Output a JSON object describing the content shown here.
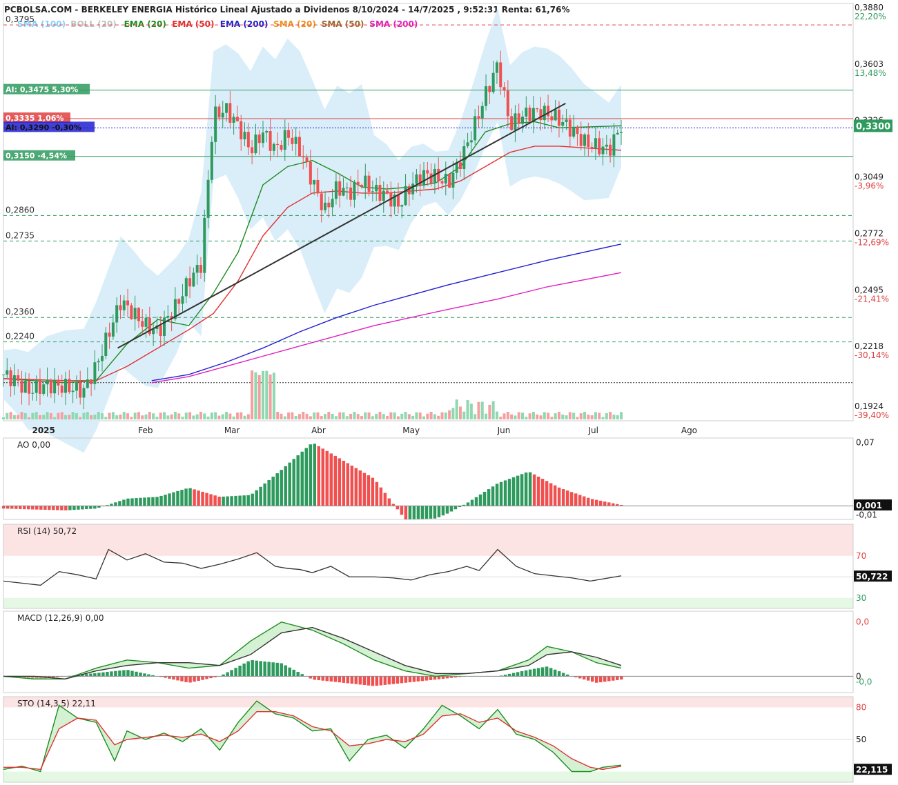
{
  "header": {
    "title": "PCBOLSA.COM - BERKELEY ENERGIA Histórico Lineal Ajustado a Dividenos 8/10/2024 - 14/7/2025 , 9:52:31 Renta: 61,76%"
  },
  "legend": [
    {
      "name": "SMA",
      "param": "(100)",
      "color": "#87cefa"
    },
    {
      "name": "BOLL",
      "param": "(20)",
      "color": "#c0c0c0"
    },
    {
      "name": "EMA",
      "param": "(20)",
      "color": "#1e8c1e"
    },
    {
      "name": "EMA",
      "param": "(50)",
      "color": "#e03030"
    },
    {
      "name": "EMA",
      "param": "(200)",
      "color": "#2020d0"
    },
    {
      "name": "SMA",
      "param": "(20)",
      "color": "#f0901e"
    },
    {
      "name": "SMA",
      "param": "(50)",
      "color": "#a0642d"
    },
    {
      "name": "SMA",
      "param": "(200)",
      "color": "#e020c0"
    }
  ],
  "colors": {
    "up": "#2e9a5e",
    "down": "#f05050",
    "boll_fill": "#d6ecfa",
    "trendline": "#333333",
    "pct_pos": "#2e9a5e",
    "pct_neg": "#e04040"
  },
  "chart_data": [
    {
      "type": "candlestick",
      "panel": "price",
      "ylim": [
        0.186,
        0.389
      ],
      "x_labels": [
        "2025",
        "Feb",
        "Mar",
        "Abr",
        "May",
        "Jun",
        "Jul",
        "Ago"
      ],
      "y_ticks": [
        {
          "value": 0.388,
          "label": "0,3880",
          "pct": "22,20%"
        },
        {
          "value": 0.3603,
          "label": "0,3603",
          "pct": "13,48%"
        },
        {
          "value": 0.3326,
          "label": "0,3326",
          "pct": ""
        },
        {
          "value": 0.3049,
          "label": "0,3049",
          "pct": "-3,96%"
        },
        {
          "value": 0.2772,
          "label": "0,2772",
          "pct": "-12,69%"
        },
        {
          "value": 0.2495,
          "label": "0,2495",
          "pct": "-21,41%"
        },
        {
          "value": 0.2218,
          "label": "0,2218",
          "pct": "-30,14%"
        },
        {
          "value": 0.1924,
          "label": "0,1924",
          "pct": "-39,40%"
        }
      ],
      "last_price": {
        "value": 0.33,
        "label": "0,3300"
      },
      "horizontal_levels": [
        {
          "value": 0.3795,
          "label": "0,3795",
          "style": "dashed",
          "color": "#e04040"
        },
        {
          "value": 0.3475,
          "label": "AI: 0,3475  5,30%",
          "style": "solid",
          "color": "#2e9a5e"
        },
        {
          "value": 0.3335,
          "label": "0,3335  1,06%",
          "style": "solid",
          "color": "#e04040"
        },
        {
          "value": 0.329,
          "label": "AI: 0,3290  -0,30%",
          "style": "dotted",
          "color": "#2020d0"
        },
        {
          "value": 0.315,
          "label": "0,3150  -4,54%",
          "style": "solid",
          "color": "#2e9a5e"
        },
        {
          "value": 0.286,
          "label": "0,2860",
          "style": "dashed",
          "color": "#2e9a5e"
        },
        {
          "value": 0.2735,
          "label": "0,2735",
          "style": "dashed",
          "color": "#2e9a5e"
        },
        {
          "value": 0.236,
          "label": "0,2360",
          "style": "dashed",
          "color": "#2e9a5e"
        },
        {
          "value": 0.224,
          "label": "0,2240",
          "style": "dashed",
          "color": "#2e9a5e"
        },
        {
          "value": 0.204,
          "label": "",
          "style": "dotted",
          "color": "#333333"
        }
      ],
      "trendline": {
        "x": [
          0.185,
          0.72
        ],
        "y": [
          0.221,
          0.341
        ]
      },
      "series": [
        {
          "name": "Close",
          "color": "#333333",
          "x": [
            0.0,
            0.02,
            0.04,
            0.07,
            0.1,
            0.13,
            0.15,
            0.17,
            0.19,
            0.21,
            0.23,
            0.25,
            0.28,
            0.3,
            0.32,
            0.34,
            0.36,
            0.38,
            0.4,
            0.42,
            0.44,
            0.45,
            0.46,
            0.48,
            0.5,
            0.52,
            0.54,
            0.56,
            0.58,
            0.6,
            0.62,
            0.64,
            0.66,
            0.68,
            0.7,
            0.72,
            0.74,
            0.76,
            0.78,
            0.8,
            0.82,
            0.84,
            0.86,
            0.88,
            0.9,
            0.92,
            0.94,
            0.96,
            0.98,
            1.0
          ],
          "values": [
            0.208,
            0.205,
            0.2,
            0.203,
            0.202,
            0.2,
            0.212,
            0.228,
            0.244,
            0.238,
            0.232,
            0.229,
            0.242,
            0.254,
            0.262,
            0.335,
            0.338,
            0.33,
            0.318,
            0.327,
            0.318,
            0.322,
            0.326,
            0.318,
            0.303,
            0.288,
            0.3,
            0.297,
            0.303,
            0.298,
            0.296,
            0.291,
            0.301,
            0.306,
            0.305,
            0.302,
            0.313,
            0.328,
            0.345,
            0.36,
            0.33,
            0.335,
            0.337,
            0.336,
            0.333,
            0.328,
            0.322,
            0.32,
            0.318,
            0.33
          ]
        },
        {
          "name": "EMA (20)",
          "color": "#1e8c1e",
          "x": [
            0.0,
            0.1,
            0.15,
            0.2,
            0.25,
            0.3,
            0.34,
            0.38,
            0.42,
            0.46,
            0.5,
            0.54,
            0.58,
            0.62,
            0.66,
            0.7,
            0.74,
            0.78,
            0.82,
            0.86,
            0.9,
            1.0
          ],
          "values": [
            0.206,
            0.204,
            0.205,
            0.223,
            0.235,
            0.232,
            0.248,
            0.268,
            0.301,
            0.31,
            0.313,
            0.307,
            0.3,
            0.299,
            0.3,
            0.302,
            0.31,
            0.327,
            0.331,
            0.332,
            0.329,
            0.33
          ]
        },
        {
          "name": "EMA (50)",
          "color": "#e03030",
          "x": [
            0.0,
            0.1,
            0.15,
            0.2,
            0.25,
            0.3,
            0.34,
            0.38,
            0.42,
            0.46,
            0.5,
            0.54,
            0.58,
            0.62,
            0.66,
            0.7,
            0.74,
            0.78,
            0.82,
            0.86,
            0.9,
            1.0
          ],
          "values": [
            0.206,
            0.205,
            0.205,
            0.212,
            0.221,
            0.23,
            0.238,
            0.254,
            0.276,
            0.29,
            0.297,
            0.298,
            0.297,
            0.297,
            0.298,
            0.299,
            0.303,
            0.31,
            0.317,
            0.32,
            0.32,
            0.318
          ]
        },
        {
          "name": "EMA (200)",
          "color": "#2020d0",
          "x": [
            0.24,
            0.3,
            0.36,
            0.42,
            0.48,
            0.54,
            0.6,
            0.66,
            0.72,
            0.8,
            0.88,
            1.0
          ],
          "values": [
            0.205,
            0.208,
            0.214,
            0.221,
            0.229,
            0.236,
            0.242,
            0.247,
            0.252,
            0.258,
            0.264,
            0.272
          ]
        },
        {
          "name": "SMA (200)",
          "color": "#e020c0",
          "x": [
            0.24,
            0.3,
            0.36,
            0.42,
            0.48,
            0.54,
            0.6,
            0.66,
            0.72,
            0.8,
            0.88,
            1.0
          ],
          "values": [
            0.204,
            0.207,
            0.212,
            0.217,
            0.222,
            0.227,
            0.232,
            0.236,
            0.24,
            0.245,
            0.251,
            0.258
          ]
        }
      ],
      "volume": {
        "color_up": "#8fd8b0",
        "color_down": "#f5a0a0",
        "peak_x": 0.42
      }
    },
    {
      "type": "bar",
      "panel": "AO",
      "label": "AO",
      "value": "0,00",
      "y_ticks": [
        {
          "value": 0.07,
          "label": "0,07"
        },
        {
          "value": -0.01,
          "label": "-0,01"
        }
      ],
      "last": {
        "value": 0.001,
        "label": "0,001"
      },
      "ylim": [
        -0.015,
        0.075
      ],
      "x": [
        0.0,
        0.05,
        0.1,
        0.15,
        0.2,
        0.25,
        0.3,
        0.35,
        0.4,
        0.45,
        0.5,
        0.55,
        0.6,
        0.65,
        0.7,
        0.72,
        0.75,
        0.8,
        0.85,
        0.9,
        0.95,
        1.0
      ],
      "values": [
        -0.003,
        -0.004,
        -0.005,
        -0.003,
        0.008,
        0.01,
        0.02,
        0.01,
        0.012,
        0.04,
        0.07,
        0.05,
        0.03,
        -0.015,
        -0.014,
        -0.008,
        0.003,
        0.025,
        0.038,
        0.02,
        0.008,
        0.001
      ]
    },
    {
      "type": "line",
      "panel": "RSI",
      "label": "RSI (14)",
      "value": "50,72",
      "y_ticks": [
        {
          "value": 70,
          "label": "70"
        },
        {
          "value": 30,
          "label": "30"
        }
      ],
      "last": {
        "value": 50.722,
        "label": "50,722"
      },
      "ylim": [
        20,
        100
      ],
      "x": [
        0.0,
        0.03,
        0.06,
        0.09,
        0.12,
        0.15,
        0.17,
        0.2,
        0.23,
        0.26,
        0.29,
        0.32,
        0.35,
        0.38,
        0.41,
        0.44,
        0.46,
        0.48,
        0.5,
        0.53,
        0.56,
        0.6,
        0.63,
        0.66,
        0.69,
        0.72,
        0.75,
        0.77,
        0.8,
        0.83,
        0.86,
        0.89,
        0.92,
        0.95,
        1.0
      ],
      "values": [
        46,
        44,
        42,
        55,
        52,
        48,
        76,
        66,
        72,
        64,
        63,
        58,
        62,
        67,
        73,
        60,
        58,
        57,
        54,
        60,
        50,
        50,
        49,
        47,
        52,
        55,
        60,
        56,
        76,
        60,
        53,
        51,
        49,
        46,
        51
      ]
    },
    {
      "type": "line",
      "panel": "MACD",
      "label": "MACD (12,26,9)",
      "value": "0,00",
      "y_ticks": [
        {
          "value": 0.02,
          "label": "0,0"
        },
        {
          "value": 0.0,
          "label": "0"
        },
        {
          "value": -0.002,
          "label": "-0,0"
        }
      ],
      "ylim": [
        -0.006,
        0.024
      ],
      "x": [
        0.0,
        0.05,
        0.1,
        0.15,
        0.2,
        0.25,
        0.3,
        0.35,
        0.4,
        0.45,
        0.5,
        0.55,
        0.6,
        0.65,
        0.7,
        0.75,
        0.8,
        0.85,
        0.88,
        0.92,
        0.96,
        1.0
      ],
      "series": [
        {
          "name": "MACD",
          "color": "#1e8c1e",
          "values": [
            0.0,
            -0.001,
            -0.001,
            0.003,
            0.006,
            0.005,
            0.003,
            0.004,
            0.013,
            0.02,
            0.017,
            0.012,
            0.006,
            0.002,
            0.0,
            0.001,
            0.002,
            0.006,
            0.011,
            0.009,
            0.005,
            0.003
          ]
        },
        {
          "name": "Signal",
          "color": "#333333",
          "values": [
            0.0,
            0.0,
            -0.001,
            0.002,
            0.004,
            0.005,
            0.005,
            0.004,
            0.008,
            0.016,
            0.018,
            0.014,
            0.009,
            0.004,
            0.001,
            0.001,
            0.002,
            0.004,
            0.008,
            0.009,
            0.007,
            0.004
          ]
        }
      ]
    },
    {
      "type": "line",
      "panel": "STO",
      "label": "STO (14,3,5)",
      "value": "22,11",
      "y_ticks": [
        {
          "value": 80,
          "label": "80"
        },
        {
          "value": 50,
          "label": "50"
        }
      ],
      "last": {
        "value": 22.115,
        "label": "22,115"
      },
      "ylim": [
        10,
        90
      ],
      "x": [
        0.0,
        0.03,
        0.06,
        0.09,
        0.12,
        0.15,
        0.18,
        0.2,
        0.23,
        0.26,
        0.29,
        0.32,
        0.35,
        0.38,
        0.41,
        0.44,
        0.47,
        0.5,
        0.53,
        0.56,
        0.59,
        0.62,
        0.65,
        0.68,
        0.71,
        0.74,
        0.77,
        0.8,
        0.83,
        0.86,
        0.89,
        0.92,
        0.95,
        0.97,
        1.0
      ],
      "series": [
        {
          "name": "%K",
          "color": "#1e8c1e",
          "values": [
            22,
            25,
            20,
            82,
            70,
            66,
            30,
            58,
            50,
            56,
            48,
            60,
            40,
            66,
            86,
            74,
            70,
            58,
            60,
            30,
            50,
            54,
            42,
            60,
            82,
            72,
            60,
            78,
            55,
            50,
            38,
            20,
            20,
            24,
            26
          ]
        },
        {
          "name": "%D",
          "color": "#e03030",
          "values": [
            24,
            24,
            22,
            60,
            70,
            68,
            45,
            50,
            52,
            54,
            52,
            55,
            48,
            58,
            76,
            76,
            72,
            62,
            58,
            44,
            46,
            50,
            48,
            55,
            72,
            74,
            66,
            70,
            58,
            52,
            44,
            32,
            24,
            22,
            25
          ]
        }
      ]
    }
  ]
}
